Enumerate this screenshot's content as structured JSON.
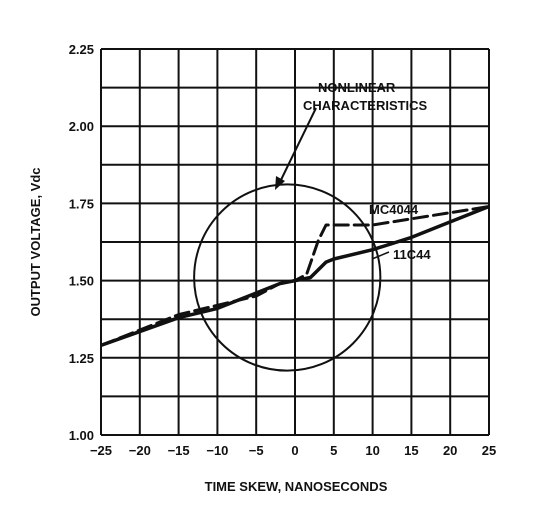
{
  "chart_data": {
    "type": "line",
    "title": "",
    "xlabel": "TIME SKEW, NANOSECONDS",
    "ylabel": "OUTPUT VOLTAGE, Vdc",
    "xlim": [
      -25,
      25
    ],
    "ylim": [
      1.0,
      2.25
    ],
    "x_ticks": [
      -25,
      -20,
      -15,
      -10,
      -5,
      0,
      5,
      10,
      15,
      20,
      25
    ],
    "x_tick_labels": [
      "−25",
      "−20",
      "−15",
      "−10",
      "−5",
      "0",
      "5",
      "10",
      "15",
      "20",
      "25"
    ],
    "y_ticks": [
      1.0,
      1.25,
      1.5,
      1.75,
      2.0,
      2.25
    ],
    "y_tick_labels": [
      "1.00",
      "1.25",
      "1.50",
      "1.75",
      "2.00",
      "2.25"
    ],
    "grid": true,
    "series": [
      {
        "name": "MC4044",
        "style": "dashed",
        "x": [
          -25,
          -15,
          -10,
          -5,
          -2,
          0,
          1.5,
          3,
          4,
          5,
          10,
          15,
          20,
          25
        ],
        "y": [
          1.29,
          1.39,
          1.42,
          1.45,
          1.49,
          1.5,
          1.52,
          1.63,
          1.68,
          1.68,
          1.68,
          1.7,
          1.72,
          1.74
        ]
      },
      {
        "name": "11C44",
        "style": "solid",
        "x": [
          -25,
          -15,
          -10,
          -5,
          -2,
          0,
          2,
          4,
          5,
          10,
          15,
          20,
          25
        ],
        "y": [
          1.29,
          1.38,
          1.41,
          1.46,
          1.49,
          1.5,
          1.51,
          1.56,
          1.57,
          1.6,
          1.64,
          1.69,
          1.74
        ]
      }
    ],
    "annotations": [
      {
        "text": "NONLINEAR CHARACTERISTICS",
        "lines": [
          "NONLINEAR",
          "CHARACTERISTICS"
        ]
      }
    ],
    "highlight_circle": {
      "cx": -1,
      "cy": 1.51,
      "r_x_units": 12
    }
  },
  "colors": {
    "ink": "#111111",
    "background": "#ffffff"
  }
}
